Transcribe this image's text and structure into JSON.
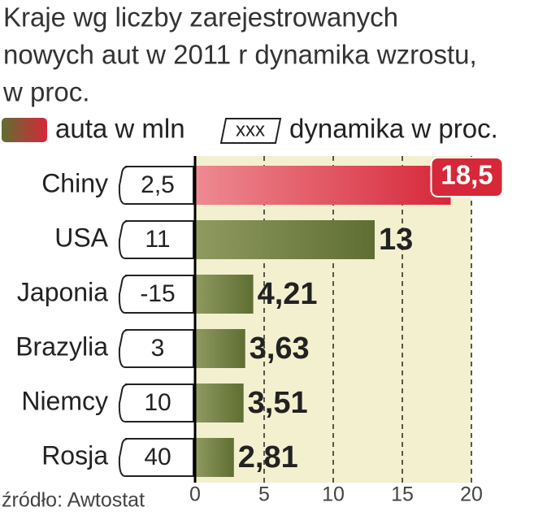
{
  "chart_data": {
    "type": "barh",
    "title": [
      "Kraje wg liczby zarejestrowanych",
      "nowych aut w 2011 r dynamika wzrostu,",
      "w proc."
    ],
    "categories": [
      "Chiny",
      "USA",
      "Japonia",
      "Brazylia",
      "Niemcy",
      "Rosja"
    ],
    "series": [
      {
        "name": "auta w mln",
        "color": "#5f6e32",
        "colors": [
          "#d62839",
          "#5f6e32",
          "#5f6e32",
          "#5f6e32",
          "#5f6e32",
          "#5f6e32"
        ],
        "values": [
          18.5,
          13,
          4.21,
          3.63,
          3.51,
          2.81
        ],
        "value_labels": [
          "18,5",
          "13",
          "4,21",
          "3,63",
          "3,51",
          "2,81"
        ]
      }
    ],
    "growth": {
      "name": "dynamika w proc.",
      "legend_sample": "xxx",
      "values": [
        2.5,
        11,
        -15,
        3,
        10,
        40
      ],
      "value_labels": [
        "2,5",
        "11",
        "-15",
        "3",
        "10",
        "40"
      ]
    },
    "xlim": [
      0,
      20
    ],
    "xticks": [
      0,
      5,
      10,
      15,
      20
    ],
    "grid": true,
    "source": "źródło: Awtostat"
  }
}
